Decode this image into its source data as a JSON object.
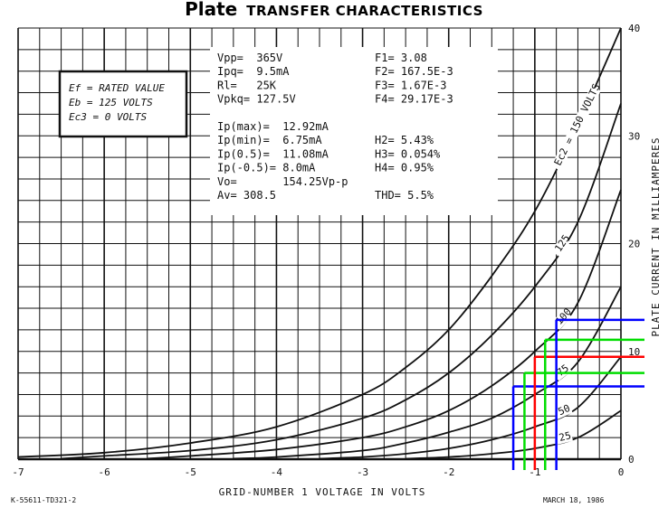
{
  "chart_data": {
    "type": "line",
    "title": "Plate TRANSFER CHARACTERISTICS",
    "title_bold_word": "Plate",
    "title_rest": "TRANSFER CHARACTERISTICS",
    "xlabel": "GRID-NUMBER 1 VOLTAGE IN VOLTS",
    "ylabel": "PLATE CURRENT IN MILLIAMPERES",
    "xlim": [
      -7,
      0
    ],
    "ylim": [
      0,
      40
    ],
    "x_ticks": [
      "-7",
      "-6",
      "-5",
      "-4",
      "-3",
      "-2",
      "-1",
      "0"
    ],
    "y_ticks": [
      "0",
      "10",
      "20",
      "30",
      "40"
    ],
    "grid": true,
    "conditions": [
      "Ef = RATED VALUE",
      "Eb = 125 VOLTS",
      "Ec3 = 0 VOLTS"
    ],
    "series": [
      {
        "name": "Ec2 = 150 VOLTS",
        "label_text": "Ec2 = 150 VOLTS",
        "x": [
          -7,
          -6,
          -5,
          -4,
          -3,
          -2.5,
          -2,
          -1.5,
          -1,
          -0.5,
          0
        ],
        "values": [
          0.2,
          0.6,
          1.5,
          3.0,
          6.0,
          8.5,
          12.0,
          17.0,
          23.0,
          31.0,
          40.0
        ]
      },
      {
        "name": "125",
        "label_text": "125",
        "x": [
          -6.5,
          -6,
          -5,
          -4,
          -3,
          -2.5,
          -2,
          -1.5,
          -1,
          -0.5,
          0
        ],
        "values": [
          0.05,
          0.3,
          0.8,
          1.8,
          3.8,
          5.5,
          8.0,
          11.5,
          16.0,
          22.0,
          33.0
        ]
      },
      {
        "name": "100",
        "label_text": "100",
        "x": [
          -5.5,
          -5,
          -4,
          -3,
          -2.5,
          -2,
          -1.5,
          -1,
          -0.5,
          0
        ],
        "values": [
          0.05,
          0.3,
          0.9,
          2.0,
          3.0,
          4.5,
          6.8,
          10.0,
          14.5,
          25.0
        ]
      },
      {
        "name": "75",
        "label_text": "75",
        "x": [
          -4.5,
          -4,
          -3,
          -2.5,
          -2,
          -1.5,
          -1,
          -0.5,
          0
        ],
        "values": [
          0.05,
          0.2,
          0.8,
          1.5,
          2.5,
          3.8,
          6.0,
          9.0,
          16.0
        ]
      },
      {
        "name": "50",
        "label_text": "50",
        "x": [
          -3.5,
          -3,
          -2.5,
          -2,
          -1.5,
          -1,
          -0.5,
          0
        ],
        "values": [
          0.05,
          0.2,
          0.5,
          1.0,
          1.8,
          3.0,
          4.8,
          9.5
        ]
      },
      {
        "name": "25",
        "label_text": "25",
        "x": [
          -2.5,
          -2,
          -1.5,
          -1,
          -0.5,
          0
        ],
        "values": [
          0.05,
          0.2,
          0.5,
          1.0,
          2.0,
          4.5
        ]
      }
    ],
    "overlay_lines": [
      {
        "color": "#0000ff",
        "vgrid": -1.25,
        "hline": 6.75
      },
      {
        "color": "#00dd00",
        "vgrid": -1.12,
        "hline": 8.0
      },
      {
        "color": "#ff0000",
        "vgrid": -1.0,
        "hline": 9.5
      },
      {
        "color": "#00dd00",
        "vgrid": -0.88,
        "hline": 11.08
      },
      {
        "color": "#0000ff",
        "vgrid": -0.75,
        "hline": 12.92
      }
    ]
  },
  "info_left": [
    "Vpp=  365V",
    "Ipq=  9.5mA",
    "Rl=   25K",
    "Vpkq= 127.5V",
    "",
    "Ip(max)=  12.92mA",
    "Ip(min)=  6.75mA",
    "Ip(0.5)=  11.08mA",
    "Ip(-0.5)= 8.0mA",
    "Vo=       154.25Vp-p",
    "Av= 308.5"
  ],
  "info_right": [
    "F1= 3.08",
    "F2= 167.5E-3",
    "F3= 1.67E-3",
    "F4= 29.17E-3",
    "",
    "H2= 5.43%",
    "H3= 0.054%",
    "H4= 0.95%",
    "",
    "THD= 5.5%"
  ],
  "footer": {
    "left": "K-55611-TD321-2",
    "right": "MARCH 18, 1986"
  },
  "colors": {
    "blue": "#0000ff",
    "green": "#00dd00",
    "red": "#ff0000"
  }
}
